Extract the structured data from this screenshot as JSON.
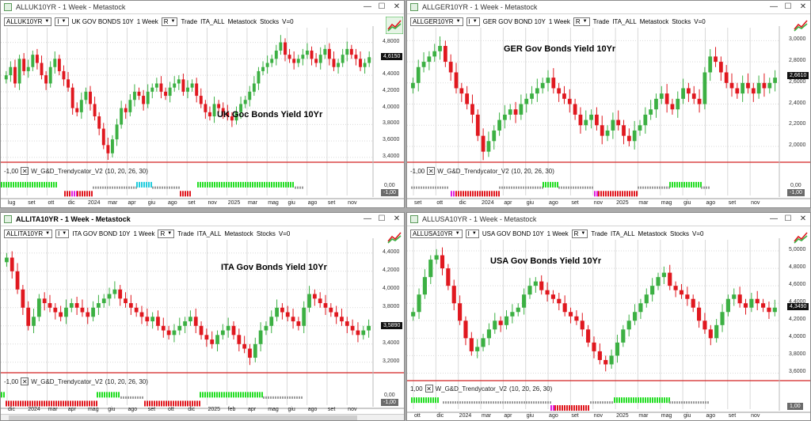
{
  "windows": [
    {
      "id": "uk",
      "title": "ALLUK10YR - 1 Week - Metastock",
      "active": false,
      "symbol": "ALLUK10YR",
      "series_name": "UK GOV BONDS 10Y",
      "period": "1 Week",
      "trade": "Trade",
      "list": "ITA_ALL",
      "src": "Metastock",
      "cat": "Stocks",
      "vol": "V=0",
      "dd_i": "I",
      "dd_r": "R",
      "chart_title": "UK Goc Bonds Yield 10Yr",
      "y_labels": [
        "4,8000",
        "4,6000",
        "4,4000",
        "4,2000",
        "4,0000",
        "3,8000",
        "3,6000",
        "3,4000"
      ],
      "last": "4,6150",
      "ind_zero": "-1,00",
      "ind_name": "W_G&D_Trendycator_V2",
      "ind_params": "(10, 20, 26, 30)",
      "ind_right_top": "0,00",
      "ind_right": "-1,00",
      "x_labels": [
        "lug",
        "set",
        "ott",
        "dic",
        "2024",
        "mar",
        "apr",
        "giu",
        "ago",
        "set",
        "nov",
        "2025",
        "mar",
        "mag",
        "giu",
        "ago",
        "set",
        "nov"
      ]
    },
    {
      "id": "ger",
      "title": "ALLGER10YR - 1 Week - Metastock",
      "active": false,
      "symbol": "ALLGER10YR",
      "series_name": "GER GOV BOND 10Y",
      "period": "1 Week",
      "trade": "Trade",
      "list": "ITA_ALL",
      "src": "Metastock",
      "cat": "Stocks",
      "vol": "V=0",
      "dd_i": "I",
      "dd_r": "R",
      "chart_title": "GER Gov Bonds Yield 10Yr",
      "y_labels": [
        "3,0000",
        "2,8000",
        "2,6000",
        "2,4000",
        "2,2000",
        "2,0000"
      ],
      "last": "2,6610",
      "ind_zero": "-1,00",
      "ind_name": "W_G&D_Trendycator_V2",
      "ind_params": "(10, 20, 26, 30)",
      "ind_right_top": "0,00",
      "ind_right": "-1,00",
      "x_labels": [
        "set",
        "ott",
        "dic",
        "2024",
        "apr",
        "giu",
        "ago",
        "set",
        "nov",
        "2025",
        "mar",
        "mag",
        "giu",
        "ago",
        "set",
        "nov"
      ]
    },
    {
      "id": "ita",
      "title": "ALLITA10YR - 1 Week - Metastock",
      "active": true,
      "symbol": "ALLITA10YR",
      "series_name": "ITA GOV BOND 10Y",
      "period": "1 Week",
      "trade": "Trade",
      "list": "ITA_ALL",
      "src": "Metastock",
      "cat": "Stocks",
      "vol": "V=0",
      "dd_i": "I",
      "dd_r": "R",
      "chart_title": "ITA Gov Bonds Yield 10Yr",
      "y_labels": [
        "4,4000",
        "4,2000",
        "4,0000",
        "3,8000",
        "3,6000",
        "3,4000",
        "3,2000"
      ],
      "last": "3,5890",
      "ind_zero": "-1,00",
      "ind_name": "W_G&D_Trendycator_V2",
      "ind_params": "(10, 20, 26, 30)",
      "ind_right_top": "0,00",
      "ind_right": "-1,00",
      "x_labels": [
        "dic",
        "2024",
        "mar",
        "apr",
        "mag",
        "giu",
        "ago",
        "set",
        "ott",
        "dic",
        "2025",
        "feb",
        "apr",
        "mag",
        "giu",
        "ago",
        "set",
        "nov"
      ]
    },
    {
      "id": "usa",
      "title": "ALLUSA10YR - 1 Week - Metastock",
      "active": false,
      "symbol": "ALLUSA10YR",
      "series_name": "USA GOV BOND 10Y",
      "period": "1 Week",
      "trade": "Trade",
      "list": "ITA_ALL",
      "src": "Metastock",
      "cat": "Stocks",
      "vol": "V=0",
      "dd_i": "I",
      "dd_r": "R",
      "chart_title": "USA Gov Bonds Yield 10Yr",
      "y_labels": [
        "5,0000",
        "4,8000",
        "4,6000",
        "4,4000",
        "4,2000",
        "4,0000",
        "3,8000",
        "3,6000"
      ],
      "last": "4,3490",
      "ind_zero": "1,00",
      "ind_name": "W_G&D_Trendycator_V2",
      "ind_params": "(10, 20, 26, 30)",
      "ind_right_top": "",
      "ind_right": "1,00",
      "x_labels": [
        "ott",
        "dic",
        "2024",
        "mar",
        "apr",
        "giu",
        "ago",
        "set",
        "nov",
        "2025",
        "mar",
        "mag",
        "giu",
        "ago",
        "set",
        "nov"
      ]
    }
  ],
  "colors": {
    "up": "#3cb043",
    "down": "#e0181f",
    "grid": "#d9d9d9",
    "redline": "#d22222",
    "ind_green": "#22dd22",
    "ind_red": "#e0181f",
    "ind_gray": "#9a9a9a",
    "ind_cyan": "#22ccdd",
    "ind_magenta": "#e020e0"
  },
  "chart_data": [
    {
      "type": "candlestick",
      "title": "UK Goc Bonds Yield 10Yr",
      "ylim": [
        3.38,
        4.95
      ],
      "last": 4.615,
      "closes": [
        4.4,
        4.5,
        4.3,
        4.6,
        4.45,
        4.5,
        4.65,
        4.55,
        4.4,
        4.3,
        4.5,
        4.6,
        4.45,
        4.35,
        4.25,
        4.0,
        3.95,
        4.1,
        4.2,
        4.05,
        3.9,
        3.75,
        3.55,
        3.45,
        3.62,
        3.8,
        4.0,
        3.95,
        4.1,
        4.2,
        4.15,
        4.05,
        4.2,
        4.25,
        4.3,
        4.2,
        4.15,
        4.25,
        4.3,
        4.35,
        4.2,
        4.25,
        4.3,
        4.15,
        4.05,
        3.95,
        3.9,
        4.05,
        4.0,
        3.95,
        3.9,
        3.85,
        3.95,
        4.05,
        4.1,
        4.2,
        4.3,
        4.45,
        4.5,
        4.55,
        4.6,
        4.7,
        4.8,
        4.65,
        4.6,
        4.55,
        4.6,
        4.65,
        4.7,
        4.6,
        4.55,
        4.65,
        4.72,
        4.6,
        4.5,
        4.55,
        4.65,
        4.72,
        4.65,
        4.6,
        4.5,
        4.55,
        4.62
      ]
    },
    {
      "type": "candlestick",
      "title": "GER Gov Bonds Yield 10Yr",
      "ylim": [
        1.88,
        3.1
      ],
      "last": 2.661,
      "closes": [
        2.6,
        2.75,
        2.8,
        2.85,
        2.9,
        2.95,
        2.8,
        2.7,
        2.55,
        2.5,
        2.4,
        2.3,
        2.1,
        1.95,
        2.05,
        2.15,
        2.25,
        2.3,
        2.35,
        2.3,
        2.4,
        2.45,
        2.5,
        2.55,
        2.6,
        2.65,
        2.55,
        2.5,
        2.45,
        2.4,
        2.3,
        2.2,
        2.25,
        2.3,
        2.2,
        2.1,
        2.15,
        2.25,
        2.2,
        2.1,
        2.05,
        2.15,
        2.2,
        2.3,
        2.35,
        2.45,
        2.5,
        2.4,
        2.35,
        2.45,
        2.55,
        2.5,
        2.45,
        2.4,
        2.7,
        2.85,
        2.8,
        2.7,
        2.6,
        2.55,
        2.5,
        2.6,
        2.55,
        2.5,
        2.6,
        2.55,
        2.6,
        2.65
      ]
    },
    {
      "type": "candlestick",
      "title": "ITA Gov Bonds Yield 10Yr",
      "ylim": [
        3.12,
        4.52
      ],
      "last": 3.589,
      "closes": [
        4.35,
        4.2,
        4.0,
        3.8,
        3.6,
        3.7,
        3.9,
        3.85,
        3.8,
        3.75,
        3.7,
        3.8,
        3.85,
        3.8,
        3.75,
        3.7,
        3.8,
        3.85,
        3.9,
        3.95,
        4.0,
        3.9,
        3.85,
        3.8,
        3.75,
        3.7,
        3.65,
        3.7,
        3.6,
        3.55,
        3.5,
        3.55,
        3.6,
        3.65,
        3.7,
        3.6,
        3.5,
        3.45,
        3.4,
        3.5,
        3.55,
        3.6,
        3.5,
        3.4,
        3.35,
        3.25,
        3.4,
        3.55,
        3.6,
        3.7,
        3.8,
        3.75,
        3.7,
        3.65,
        3.6,
        3.8,
        3.95,
        3.9,
        3.85,
        3.8,
        3.75,
        3.7,
        3.65,
        3.6,
        3.55,
        3.5,
        3.55,
        3.6
      ]
    },
    {
      "type": "candlestick",
      "title": "USA Gov Bonds Yield 10Yr",
      "ylim": [
        3.55,
        5.1
      ],
      "last": 4.349,
      "closes": [
        4.3,
        4.5,
        4.7,
        4.9,
        4.95,
        4.8,
        4.6,
        4.4,
        4.2,
        4.0,
        3.85,
        3.9,
        4.0,
        4.1,
        4.2,
        4.15,
        4.25,
        4.3,
        4.35,
        4.5,
        4.6,
        4.65,
        4.55,
        4.5,
        4.45,
        4.4,
        4.3,
        4.25,
        4.2,
        4.1,
        3.95,
        3.85,
        3.75,
        3.7,
        3.8,
        3.95,
        4.1,
        4.2,
        4.3,
        4.4,
        4.5,
        4.6,
        4.7,
        4.75,
        4.6,
        4.55,
        4.5,
        4.45,
        4.35,
        4.2,
        4.1,
        4.0,
        4.15,
        4.3,
        4.45,
        4.5,
        4.4,
        4.35,
        4.45,
        4.4,
        4.35,
        4.3,
        4.35
      ]
    }
  ]
}
